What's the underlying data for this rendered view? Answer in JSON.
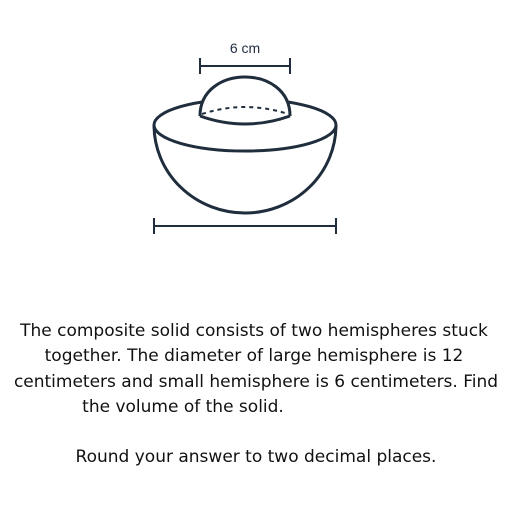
{
  "figure": {
    "top_dimension_label": "6 cm",
    "stroke_color": "#1f2d3d"
  },
  "problem": {
    "lines": [
      "The composite solid consists of two hemispheres stuck",
      "together. The diameter of large hemisphere is 12",
      "centimeters and small hemisphere is 6 centimeters. Find",
      "the volume of the solid."
    ],
    "instruction": "Round your answer to two decimal places."
  }
}
